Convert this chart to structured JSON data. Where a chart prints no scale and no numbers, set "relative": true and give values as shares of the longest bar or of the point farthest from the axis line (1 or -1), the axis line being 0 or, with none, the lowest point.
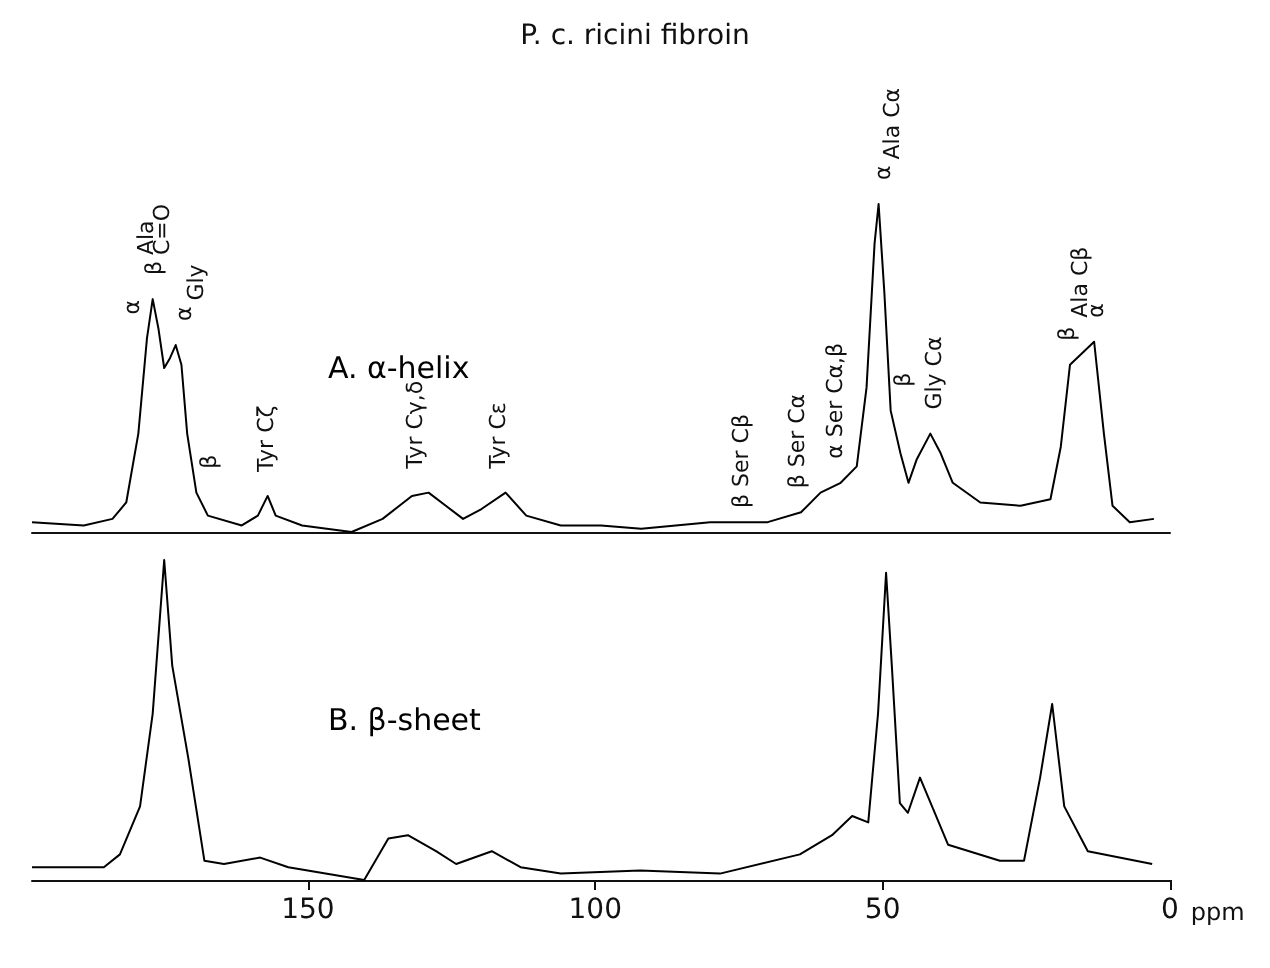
{
  "chart_data": [
    {
      "type": "line",
      "title": "P. c. ricini fibroin",
      "relative": true,
      "xlim": [
        198,
        0
      ],
      "xticks": [
        150,
        100,
        50,
        0
      ],
      "tick_labels": false,
      "marker": "none",
      "line_style": "solid",
      "annotations": [
        "α",
        "β",
        "Ala",
        "C=O",
        "α",
        "β",
        "Gly",
        "Tyr Cζ",
        "Tyr Cγ,δ",
        "Tyr Cε",
        "β Ser Cβ",
        "β Ser Cα",
        "α Ser Cα,β",
        "α",
        "β",
        "Ala Cα",
        "Gly Cα",
        "β",
        "α",
        "Ala Cβ"
      ],
      "series": [
        {
          "name": "A. α-helix",
          "color": "#000000",
          "x": [
            198,
            189,
            184,
            181.6,
            179.5,
            178,
            177,
            176,
            175,
            174,
            173,
            172,
            171,
            169.4,
            167.4,
            161.5,
            158.7,
            157,
            155.6,
            151,
            142.4,
            137,
            131.9,
            129,
            126,
            123,
            119.8,
            115.6,
            112,
            106,
            99,
            92,
            80,
            70,
            64.2,
            60.8,
            57.3,
            54.5,
            52.8,
            51.4,
            50.7,
            49.7,
            48.6,
            46.9,
            45.5,
            44.1,
            41.7,
            39.9,
            37.8,
            33,
            26,
            20.8,
            19,
            17.4,
            13.2,
            11.5,
            10,
            7,
            2.8
          ],
          "values": [
            0.03,
            0.02,
            0.04,
            0.09,
            0.3,
            0.59,
            0.71,
            0.62,
            0.5,
            0.53,
            0.57,
            0.51,
            0.3,
            0.12,
            0.05,
            0.02,
            0.05,
            0.11,
            0.05,
            0.02,
            0,
            0.04,
            0.11,
            0.12,
            0.08,
            0.04,
            0.07,
            0.12,
            0.05,
            0.02,
            0.02,
            0.01,
            0.03,
            0.03,
            0.06,
            0.12,
            0.15,
            0.2,
            0.44,
            0.88,
            1,
            0.73,
            0.37,
            0.24,
            0.15,
            0.22,
            0.3,
            0.24,
            0.15,
            0.09,
            0.08,
            0.1,
            0.26,
            0.51,
            0.58,
            0.3,
            0.08,
            0.03,
            0.04
          ]
        }
      ]
    },
    {
      "type": "line",
      "relative": true,
      "xlabel": "ppm",
      "xlim": [
        198,
        0
      ],
      "xticks": [
        150,
        100,
        50,
        0
      ],
      "tick_labels": "x",
      "marker": "none",
      "line_style": "solid",
      "series": [
        {
          "name": "B. β-sheet",
          "color": "#000000",
          "x": [
            198,
            185.5,
            182.7,
            179.2,
            177,
            175,
            173.6,
            170.8,
            168,
            164.6,
            158.3,
            153.4,
            140.2,
            136,
            132.6,
            127.7,
            124.2,
            118,
            113,
            106,
            92.2,
            78.3,
            64.4,
            58.8,
            55.3,
            52.5,
            50.8,
            49.4,
            48.4,
            47,
            45.6,
            43.5,
            41.4,
            38.6,
            29.6,
            25.4,
            22.6,
            20.5,
            18.4,
            14.3,
            3.1
          ],
          "values": [
            0.04,
            0.04,
            0.08,
            0.23,
            0.52,
            1,
            0.67,
            0.38,
            0.06,
            0.05,
            0.07,
            0.04,
            0,
            0.13,
            0.14,
            0.09,
            0.05,
            0.09,
            0.04,
            0.02,
            0.03,
            0.02,
            0.08,
            0.14,
            0.2,
            0.18,
            0.52,
            0.96,
            0.67,
            0.24,
            0.21,
            0.32,
            0.23,
            0.11,
            0.06,
            0.06,
            0.32,
            0.55,
            0.23,
            0.09,
            0.05
          ]
        }
      ]
    }
  ]
}
